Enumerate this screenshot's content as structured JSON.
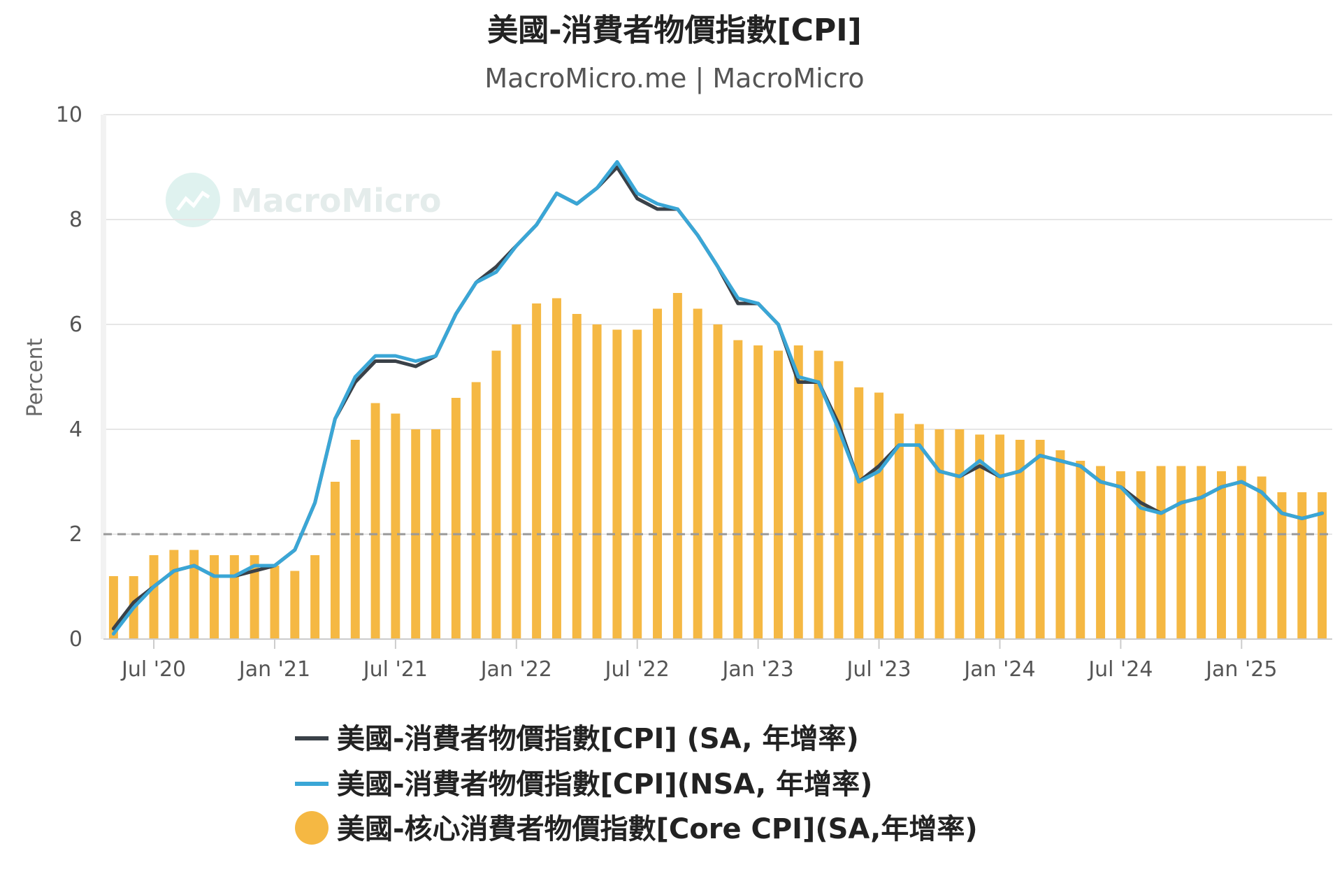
{
  "chart_data": {
    "type": "bar",
    "title": "美國-消費者物價指數[CPI]",
    "subtitle": "MacroMicro.me | MacroMicro",
    "watermark": "MacroMicro",
    "ylabel": "Percent",
    "ylim": [
      0,
      10
    ],
    "yticks": [
      0,
      2,
      4,
      6,
      8,
      10
    ],
    "xtick_labels": [
      "Jul '20",
      "Jan '21",
      "Jul '21",
      "Jan '22",
      "Jul '22",
      "Jan '23",
      "Jul '23",
      "Jan '24",
      "Jul '24",
      "Jan '25"
    ],
    "reference_line": {
      "value": 2,
      "style": "dashed",
      "color": "#999999"
    },
    "grid": true,
    "legend_position": "bottom",
    "categories": [
      "2020-05",
      "2020-06",
      "2020-07",
      "2020-08",
      "2020-09",
      "2020-10",
      "2020-11",
      "2020-12",
      "2021-01",
      "2021-02",
      "2021-03",
      "2021-04",
      "2021-05",
      "2021-06",
      "2021-07",
      "2021-08",
      "2021-09",
      "2021-10",
      "2021-11",
      "2021-12",
      "2022-01",
      "2022-02",
      "2022-03",
      "2022-04",
      "2022-05",
      "2022-06",
      "2022-07",
      "2022-08",
      "2022-09",
      "2022-10",
      "2022-11",
      "2022-12",
      "2023-01",
      "2023-02",
      "2023-03",
      "2023-04",
      "2023-05",
      "2023-06",
      "2023-07",
      "2023-08",
      "2023-09",
      "2023-10",
      "2023-11",
      "2023-12",
      "2024-01",
      "2024-02",
      "2024-03",
      "2024-04",
      "2024-05",
      "2024-06",
      "2024-07",
      "2024-08",
      "2024-09",
      "2024-10",
      "2024-11",
      "2024-12",
      "2025-01",
      "2025-02",
      "2025-03",
      "2025-04",
      "2025-05"
    ],
    "series": [
      {
        "name": "美國-消費者物價指數[CPI] (SA, 年增率)",
        "type": "line",
        "color": "#3a4148",
        "values": [
          0.2,
          0.7,
          1.0,
          1.3,
          1.4,
          1.2,
          1.2,
          1.3,
          1.4,
          1.7,
          2.6,
          4.2,
          4.9,
          5.3,
          5.3,
          5.2,
          5.4,
          6.2,
          6.8,
          7.1,
          7.5,
          7.9,
          8.5,
          8.3,
          8.6,
          9.0,
          8.4,
          8.2,
          8.2,
          7.7,
          7.1,
          6.4,
          6.4,
          6.0,
          4.9,
          4.9,
          4.1,
          3.0,
          3.3,
          3.7,
          3.7,
          3.2,
          3.1,
          3.3,
          3.1,
          3.2,
          3.5,
          3.4,
          3.3,
          3.0,
          2.9,
          2.6,
          2.4,
          2.6,
          2.7,
          2.9,
          3.0,
          2.8,
          2.4,
          2.3,
          2.4
        ]
      },
      {
        "name": "美國-消費者物價指數[CPI](NSA, 年增率)",
        "type": "line",
        "color": "#3aa6d6",
        "values": [
          0.1,
          0.6,
          1.0,
          1.3,
          1.4,
          1.2,
          1.2,
          1.4,
          1.4,
          1.7,
          2.6,
          4.2,
          5.0,
          5.4,
          5.4,
          5.3,
          5.4,
          6.2,
          6.8,
          7.0,
          7.5,
          7.9,
          8.5,
          8.3,
          8.6,
          9.1,
          8.5,
          8.3,
          8.2,
          7.7,
          7.1,
          6.5,
          6.4,
          6.0,
          5.0,
          4.9,
          4.0,
          3.0,
          3.2,
          3.7,
          3.7,
          3.2,
          3.1,
          3.4,
          3.1,
          3.2,
          3.5,
          3.4,
          3.3,
          3.0,
          2.9,
          2.5,
          2.4,
          2.6,
          2.7,
          2.9,
          3.0,
          2.8,
          2.4,
          2.3,
          2.4
        ]
      },
      {
        "name": "美國-核心消費者物價指數[Core CPI](SA,年增率)",
        "type": "bar",
        "color": "#f5b843",
        "values": [
          1.2,
          1.2,
          1.6,
          1.7,
          1.7,
          1.6,
          1.6,
          1.6,
          1.4,
          1.3,
          1.6,
          3.0,
          3.8,
          4.5,
          4.3,
          4.0,
          4.0,
          4.6,
          4.9,
          5.5,
          6.0,
          6.4,
          6.5,
          6.2,
          6.0,
          5.9,
          5.9,
          6.3,
          6.6,
          6.3,
          6.0,
          5.7,
          5.6,
          5.5,
          5.6,
          5.5,
          5.3,
          4.8,
          4.7,
          4.3,
          4.1,
          4.0,
          4.0,
          3.9,
          3.9,
          3.8,
          3.8,
          3.6,
          3.4,
          3.3,
          3.2,
          3.2,
          3.3,
          3.3,
          3.3,
          3.2,
          3.3,
          3.1,
          2.8,
          2.8,
          2.8
        ]
      }
    ]
  }
}
